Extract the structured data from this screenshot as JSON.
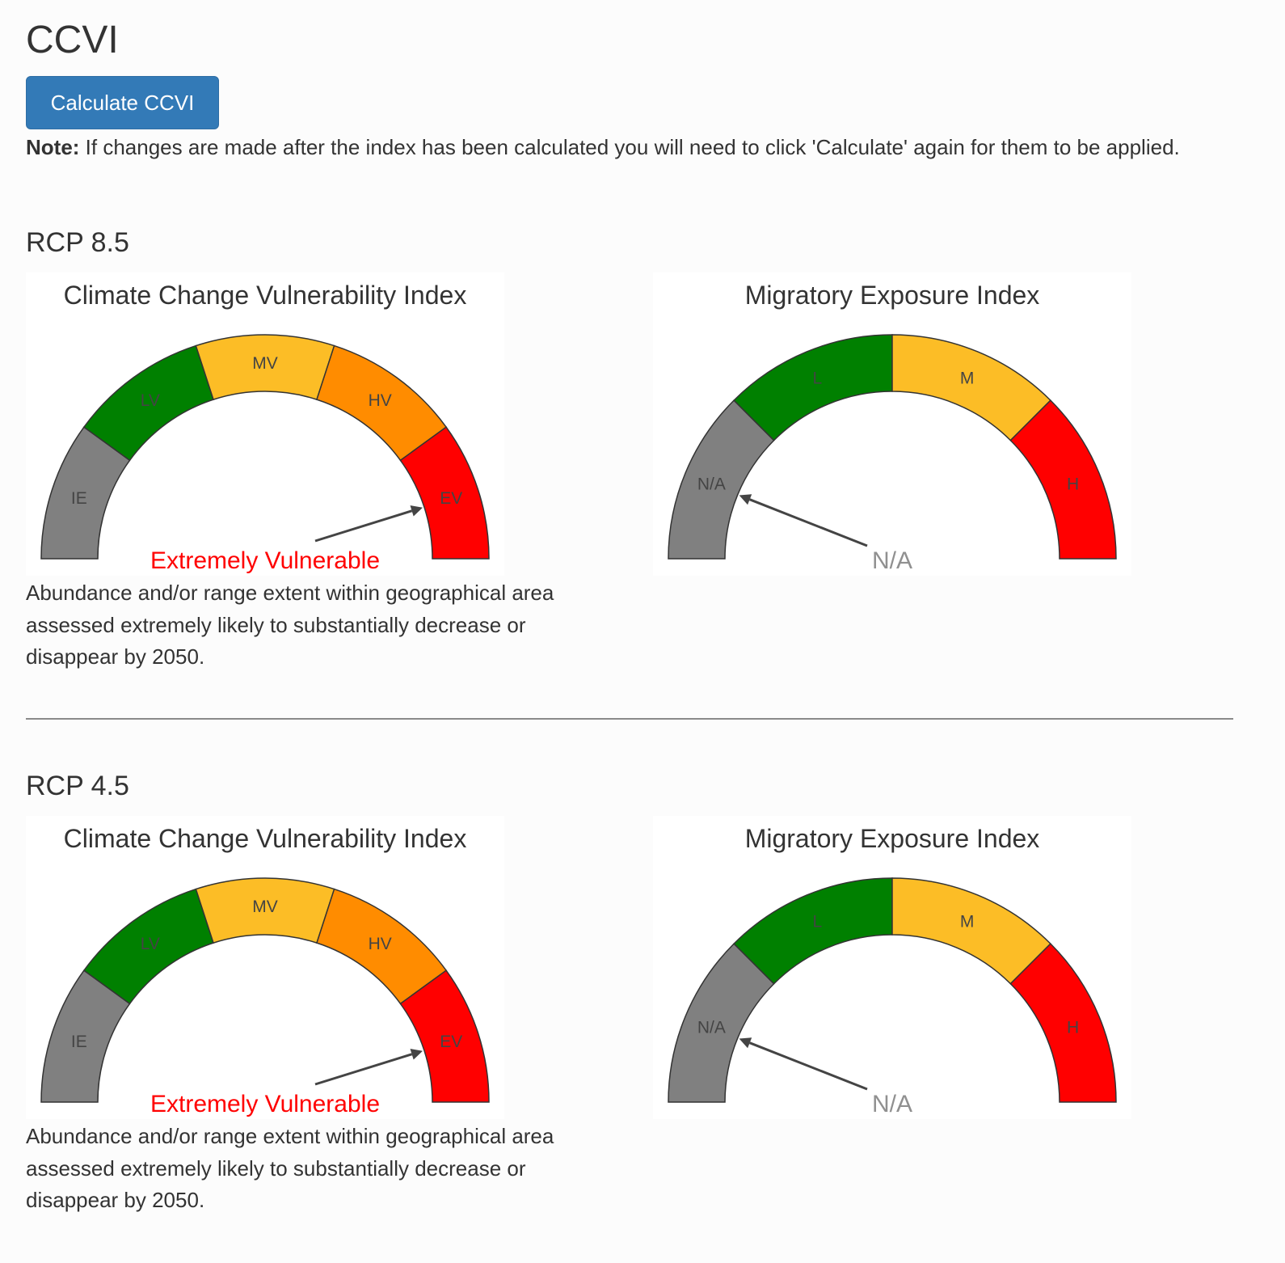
{
  "page": {
    "title": "CCVI",
    "calculate_button": "Calculate CCVI",
    "note_label": "Note:",
    "note_text": "If changes are made after the index has been calculated you will need to click 'Calculate' again for them to be applied."
  },
  "colors": {
    "gray": "#808080",
    "green": "#008000",
    "yellow": "#fcbd26",
    "orange": "#ff8c00",
    "red": "#ff0000",
    "needle": "#444444",
    "value_red": "#ff0000",
    "value_gray": "#909090",
    "button": "#337ab7"
  },
  "sections": [
    {
      "title": "RCP 8.5",
      "ccvi": {
        "title": "Climate Change Vulnerability Index",
        "bands": [
          {
            "label": "IE",
            "color": "#808080"
          },
          {
            "label": "LV",
            "color": "#008000"
          },
          {
            "label": "MV",
            "color": "#fcbd26"
          },
          {
            "label": "HV",
            "color": "#ff8c00"
          },
          {
            "label": "EV",
            "color": "#ff0000"
          }
        ],
        "value_label": "Extremely Vulnerable",
        "value_color": "#ff0000",
        "pointer_band": "EV",
        "description": "Abundance and/or range extent within geographical area assessed extremely likely to substantially decrease or disappear by 2050."
      },
      "mei": {
        "title": "Migratory Exposure Index",
        "bands": [
          {
            "label": "N/A",
            "color": "#808080"
          },
          {
            "label": "L",
            "color": "#008000"
          },
          {
            "label": "M",
            "color": "#fcbd26"
          },
          {
            "label": "H",
            "color": "#ff0000"
          }
        ],
        "value_label": "N/A",
        "value_color": "#909090",
        "pointer_band": "N/A"
      }
    },
    {
      "title": "RCP 4.5",
      "ccvi": {
        "title": "Climate Change Vulnerability Index",
        "bands": [
          {
            "label": "IE",
            "color": "#808080"
          },
          {
            "label": "LV",
            "color": "#008000"
          },
          {
            "label": "MV",
            "color": "#fcbd26"
          },
          {
            "label": "HV",
            "color": "#ff8c00"
          },
          {
            "label": "EV",
            "color": "#ff0000"
          }
        ],
        "value_label": "Extremely Vulnerable",
        "value_color": "#ff0000",
        "pointer_band": "EV",
        "description": "Abundance and/or range extent within geographical area assessed extremely likely to substantially decrease or disappear by 2050."
      },
      "mei": {
        "title": "Migratory Exposure Index",
        "bands": [
          {
            "label": "N/A",
            "color": "#808080"
          },
          {
            "label": "L",
            "color": "#008000"
          },
          {
            "label": "M",
            "color": "#fcbd26"
          },
          {
            "label": "H",
            "color": "#ff0000"
          }
        ],
        "value_label": "N/A",
        "value_color": "#909090",
        "pointer_band": "N/A"
      }
    }
  ]
}
